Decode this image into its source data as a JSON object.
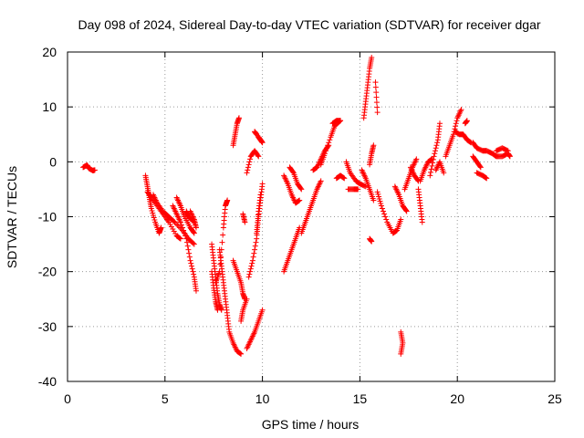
{
  "chart_data": {
    "type": "scatter",
    "title": "Day 098 of 2024, Sidereal Day-to-day VTEC variation (SDTVAR) for receiver dgar",
    "xlabel": "GPS time / hours",
    "ylabel": "SDTVAR / TECUs",
    "xlim": [
      0,
      25
    ],
    "ylim": [
      -40,
      20
    ],
    "xticks": [
      0,
      5,
      10,
      15,
      20,
      25
    ],
    "yticks": [
      -40,
      -30,
      -20,
      -10,
      0,
      10,
      20
    ],
    "grid": true,
    "grid_style": "dotted",
    "marker": "+",
    "marker_color": "#ff0000",
    "legend": "none",
    "tracks": [
      [
        [
          0.8,
          -1.0
        ],
        [
          1.0,
          -0.6
        ],
        [
          1.1,
          -1.2
        ],
        [
          1.3,
          -1.6
        ],
        [
          1.4,
          -1.5
        ]
      ],
      [
        [
          4.0,
          -2.5
        ],
        [
          4.1,
          -4.5
        ],
        [
          4.2,
          -6.5
        ],
        [
          4.3,
          -8.5
        ],
        [
          4.5,
          -11.0
        ],
        [
          4.7,
          -13.0
        ],
        [
          4.8,
          -12.0
        ]
      ],
      [
        [
          4.1,
          -5.5
        ],
        [
          4.3,
          -6.5
        ],
        [
          4.6,
          -8.0
        ],
        [
          4.9,
          -9.5
        ],
        [
          5.2,
          -11.0
        ],
        [
          5.6,
          -13.5
        ],
        [
          5.8,
          -14.0
        ]
      ],
      [
        [
          4.4,
          -6.0
        ],
        [
          4.6,
          -7.5
        ],
        [
          4.9,
          -9.0
        ],
        [
          5.2,
          -10.0
        ],
        [
          5.5,
          -11.0
        ],
        [
          5.9,
          -12.5
        ],
        [
          6.2,
          -14.0
        ],
        [
          6.5,
          -15.0
        ]
      ],
      [
        [
          5.4,
          -8.0
        ],
        [
          5.6,
          -9.5
        ],
        [
          5.8,
          -11.0
        ],
        [
          6.1,
          -14.0
        ],
        [
          6.3,
          -18.0
        ],
        [
          6.5,
          -21.0
        ],
        [
          6.6,
          -23.5
        ]
      ],
      [
        [
          5.6,
          -6.5
        ],
        [
          5.8,
          -8.0
        ],
        [
          6.0,
          -10.0
        ],
        [
          6.3,
          -12.0
        ],
        [
          6.5,
          -13.0
        ]
      ],
      [
        [
          6.1,
          -9.0
        ],
        [
          6.2,
          -10.0
        ],
        [
          6.5,
          -11.0
        ]
      ],
      [
        [
          6.3,
          -9.0
        ],
        [
          6.5,
          -10.5
        ],
        [
          6.6,
          -12.0
        ]
      ],
      [
        [
          7.4,
          -15.0
        ],
        [
          7.5,
          -18.0
        ],
        [
          7.6,
          -21.0
        ],
        [
          7.7,
          -24.0
        ],
        [
          7.8,
          -26.0
        ],
        [
          7.9,
          -27.0
        ]
      ],
      [
        [
          7.4,
          -20.0
        ],
        [
          7.5,
          -23.0
        ],
        [
          7.6,
          -25.5
        ],
        [
          7.7,
          -27.0
        ]
      ],
      [
        [
          7.8,
          -16.0
        ],
        [
          7.9,
          -19.0
        ],
        [
          8.0,
          -22.0
        ],
        [
          8.1,
          -25.0
        ],
        [
          8.2,
          -28.0
        ],
        [
          8.3,
          -31.0
        ],
        [
          8.5,
          -33.0
        ],
        [
          8.7,
          -34.5
        ],
        [
          8.9,
          -35.0
        ]
      ],
      [
        [
          7.6,
          -22.0
        ],
        [
          7.8,
          -20.0
        ],
        [
          8.0,
          -12.0
        ],
        [
          8.1,
          -8.0
        ],
        [
          8.2,
          -7.0
        ]
      ],
      [
        [
          8.5,
          -18.0
        ],
        [
          8.7,
          -20.0
        ],
        [
          8.9,
          -22.0
        ],
        [
          9.0,
          -24.0
        ],
        [
          9.1,
          -25.0
        ]
      ],
      [
        [
          9.0,
          -9.5
        ],
        [
          9.1,
          -11.0
        ]
      ],
      [
        [
          8.5,
          3.0
        ],
        [
          8.6,
          5.0
        ],
        [
          8.7,
          7.0
        ],
        [
          8.8,
          8.0
        ]
      ],
      [
        [
          8.9,
          -29.0
        ],
        [
          9.0,
          -27.0
        ],
        [
          9.2,
          -25.0
        ]
      ],
      [
        [
          9.2,
          -34.0
        ],
        [
          9.4,
          -32.5
        ],
        [
          9.6,
          -31.0
        ],
        [
          9.8,
          -29.0
        ],
        [
          10.0,
          -27.0
        ]
      ],
      [
        [
          9.3,
          -21.0
        ],
        [
          9.5,
          -18.0
        ],
        [
          9.7,
          -14.0
        ],
        [
          9.8,
          -10.0
        ],
        [
          9.9,
          -7.0
        ],
        [
          10.0,
          -4.0
        ]
      ],
      [
        [
          9.7,
          -13.0
        ],
        [
          9.8,
          -9.0
        ],
        [
          9.9,
          -6.0
        ]
      ],
      [
        [
          9.2,
          -2.0
        ],
        [
          9.4,
          1.0
        ],
        [
          9.6,
          2.0
        ],
        [
          9.8,
          1.0
        ]
      ],
      [
        [
          9.8,
          4.5
        ],
        [
          9.9,
          4.0
        ],
        [
          10.0,
          3.5
        ],
        [
          9.7,
          5.0
        ],
        [
          9.6,
          5.5
        ]
      ],
      [
        [
          11.1,
          -20.0
        ],
        [
          11.3,
          -18.0
        ],
        [
          11.5,
          -16.0
        ],
        [
          11.7,
          -14.0
        ],
        [
          11.9,
          -12.0
        ]
      ],
      [
        [
          11.1,
          -2.5
        ],
        [
          11.3,
          -4.0
        ],
        [
          11.5,
          -6.0
        ],
        [
          11.7,
          -7.5
        ],
        [
          11.9,
          -7.0
        ]
      ],
      [
        [
          11.4,
          -1.0
        ],
        [
          11.6,
          -2.0
        ],
        [
          11.8,
          -4.0
        ],
        [
          12.0,
          -5.0
        ]
      ],
      [
        [
          12.0,
          -13.0
        ],
        [
          12.2,
          -11.0
        ],
        [
          12.4,
          -9.0
        ],
        [
          12.6,
          -7.0
        ],
        [
          12.8,
          -5.0
        ],
        [
          13.0,
          -3.5
        ]
      ],
      [
        [
          12.6,
          -1.5
        ],
        [
          12.8,
          -1.0
        ],
        [
          13.0,
          0.5
        ],
        [
          13.2,
          2.0
        ],
        [
          13.4,
          3.0
        ]
      ],
      [
        [
          13.0,
          -0.5
        ],
        [
          13.2,
          1.5
        ],
        [
          13.5,
          4.5
        ],
        [
          13.7,
          6.5
        ],
        [
          14.0,
          7.5
        ]
      ],
      [
        [
          13.6,
          7.0
        ],
        [
          13.8,
          7.5
        ],
        [
          14.0,
          7.5
        ]
      ],
      [
        [
          13.8,
          -3.0
        ],
        [
          14.0,
          -2.5
        ],
        [
          14.2,
          -3.0
        ]
      ],
      [
        [
          14.3,
          0.0
        ],
        [
          14.5,
          -2.0
        ],
        [
          14.8,
          -3.5
        ],
        [
          15.0,
          -4.0
        ],
        [
          15.3,
          -4.5
        ]
      ],
      [
        [
          14.4,
          -5.0
        ],
        [
          14.7,
          -5.0
        ],
        [
          14.9,
          -5.0
        ]
      ],
      [
        [
          15.1,
          -1.5
        ],
        [
          15.3,
          -3.0
        ],
        [
          15.5,
          -5.0
        ],
        [
          15.7,
          -7.0
        ]
      ],
      [
        [
          15.2,
          8.0
        ],
        [
          15.3,
          11.0
        ],
        [
          15.4,
          14.0
        ],
        [
          15.5,
          17.0
        ],
        [
          15.6,
          19.0
        ]
      ],
      [
        [
          15.8,
          14.5
        ],
        [
          15.9,
          9.0
        ]
      ],
      [
        [
          15.5,
          -0.5
        ],
        [
          15.6,
          1.5
        ],
        [
          15.7,
          3.0
        ]
      ],
      [
        [
          15.5,
          -14.0
        ],
        [
          15.6,
          -14.5
        ]
      ],
      [
        [
          15.9,
          -5.5
        ],
        [
          16.1,
          -8.0
        ],
        [
          16.4,
          -11.0
        ],
        [
          16.7,
          -13.0
        ],
        [
          16.9,
          -12.5
        ],
        [
          17.1,
          -10.5
        ]
      ],
      [
        [
          17.1,
          -31.0
        ],
        [
          17.2,
          -33.0
        ],
        [
          17.1,
          -35.0
        ]
      ],
      [
        [
          17.3,
          -5.0
        ],
        [
          17.5,
          -3.0
        ],
        [
          17.7,
          -1.0
        ],
        [
          17.9,
          0.5
        ]
      ],
      [
        [
          16.8,
          -4.5
        ],
        [
          17.0,
          -6.0
        ],
        [
          17.2,
          -8.0
        ],
        [
          17.4,
          -9.0
        ]
      ],
      [
        [
          17.6,
          -1.0
        ],
        [
          17.8,
          -2.5
        ],
        [
          18.0,
          -3.5
        ]
      ],
      [
        [
          18.0,
          -5.0
        ],
        [
          18.1,
          -8.0
        ],
        [
          18.2,
          -11.0
        ]
      ],
      [
        [
          18.1,
          -3.5
        ],
        [
          18.3,
          -1.5
        ],
        [
          18.5,
          0.0
        ],
        [
          18.7,
          0.5
        ]
      ],
      [
        [
          18.6,
          -2.5
        ],
        [
          18.8,
          1.0
        ],
        [
          19.0,
          4.0
        ],
        [
          19.1,
          7.0
        ]
      ],
      [
        [
          18.9,
          -1.5
        ],
        [
          19.1,
          0.0
        ],
        [
          19.3,
          -2.0
        ]
      ],
      [
        [
          19.4,
          1.0
        ],
        [
          19.6,
          3.0
        ],
        [
          19.8,
          5.0
        ],
        [
          20.0,
          8.0
        ],
        [
          20.2,
          9.5
        ]
      ],
      [
        [
          19.9,
          5.5
        ],
        [
          20.1,
          5.0
        ],
        [
          20.3,
          5.0
        ],
        [
          20.5,
          4.0
        ],
        [
          20.7,
          3.5
        ]
      ],
      [
        [
          20.4,
          7.0
        ],
        [
          20.5,
          7.5
        ]
      ],
      [
        [
          20.8,
          1.0
        ],
        [
          21.0,
          0.0
        ],
        [
          21.2,
          -1.0
        ]
      ],
      [
        [
          21.0,
          -2.0
        ],
        [
          21.3,
          -2.5
        ],
        [
          21.5,
          -3.0
        ]
      ],
      [
        [
          20.8,
          3.5
        ],
        [
          21.0,
          2.5
        ],
        [
          21.3,
          2.0
        ],
        [
          21.5,
          2.0
        ],
        [
          21.8,
          1.5
        ],
        [
          22.0,
          1.0
        ],
        [
          22.3,
          1.0
        ],
        [
          22.6,
          1.5
        ],
        [
          22.7,
          1.0
        ]
      ],
      [
        [
          22.0,
          2.0
        ],
        [
          22.3,
          2.5
        ],
        [
          22.6,
          2.0
        ]
      ]
    ]
  }
}
